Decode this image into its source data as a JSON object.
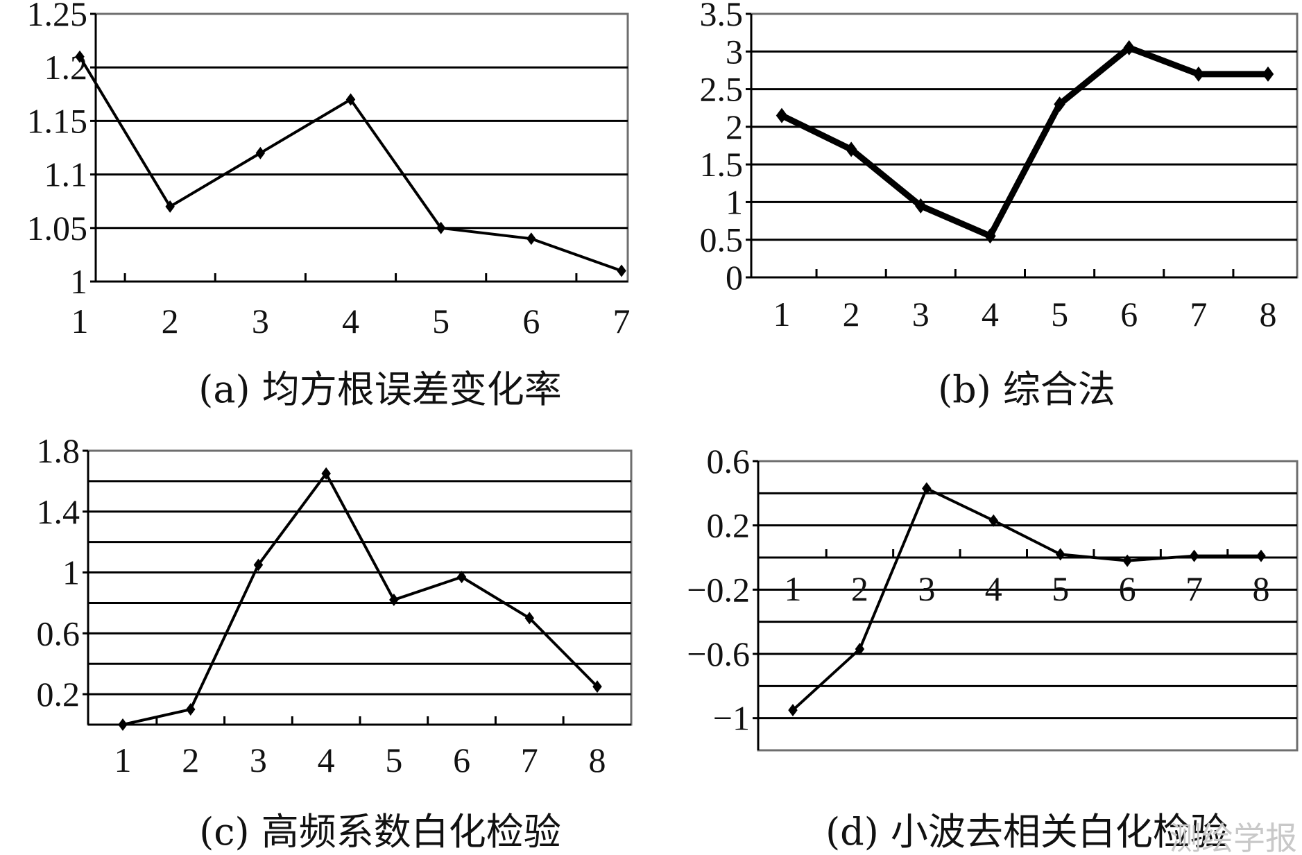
{
  "chart_data": [
    {
      "type": "line",
      "title": "(a) 均方根误差变化率",
      "x": [
        1,
        2,
        3,
        4,
        5,
        6,
        7
      ],
      "y": [
        1.21,
        1.07,
        1.12,
        1.17,
        1.05,
        1.04,
        1.01
      ],
      "ylim": [
        1,
        1.25
      ],
      "yticks": [
        "1",
        "1.05",
        "1.1",
        "1.15",
        "1.2",
        "1.25"
      ],
      "xticks": [
        "1",
        "2",
        "3",
        "4",
        "5",
        "6",
        "7"
      ],
      "grid": true
    },
    {
      "type": "line",
      "title": "(b) 综合法",
      "x": [
        1,
        2,
        3,
        4,
        5,
        6,
        7,
        8
      ],
      "y": [
        2.15,
        1.7,
        0.95,
        0.55,
        2.3,
        3.05,
        2.7,
        2.7
      ],
      "ylim": [
        0,
        3.5
      ],
      "yticks": [
        "0",
        "0.5",
        "1",
        "1.5",
        "2",
        "2.5",
        "3",
        "3.5"
      ],
      "xticks": [
        "1",
        "2",
        "3",
        "4",
        "5",
        "6",
        "7",
        "8"
      ],
      "grid": true
    },
    {
      "type": "line",
      "title": "(c) 高频系数白化检验",
      "x": [
        1,
        2,
        3,
        4,
        5,
        6,
        7,
        8
      ],
      "y": [
        0.0,
        0.1,
        1.05,
        1.65,
        0.82,
        0.97,
        0.7,
        0.25
      ],
      "ylim": [
        0,
        1.8
      ],
      "yticks": [
        "0.2",
        "0.6",
        "1",
        "1.4",
        "1.8"
      ],
      "xticks": [
        "1",
        "2",
        "3",
        "4",
        "5",
        "6",
        "7",
        "8"
      ],
      "grid": true
    },
    {
      "type": "line",
      "title": "(d) 小波去相关白化检验",
      "x": [
        1,
        2,
        3,
        4,
        5,
        6,
        7,
        8
      ],
      "y": [
        -0.95,
        -0.57,
        0.43,
        0.23,
        0.02,
        -0.02,
        0.01,
        0.01
      ],
      "ylim": [
        -1.2,
        0.6
      ],
      "yticks": [
        "−1",
        "−0.6",
        "−0.2",
        "0.2",
        "0.6"
      ],
      "xticks": [
        "1",
        "2",
        "3",
        "4",
        "5",
        "6",
        "7",
        "8"
      ],
      "grid": true
    }
  ],
  "watermark": "测绘学报"
}
